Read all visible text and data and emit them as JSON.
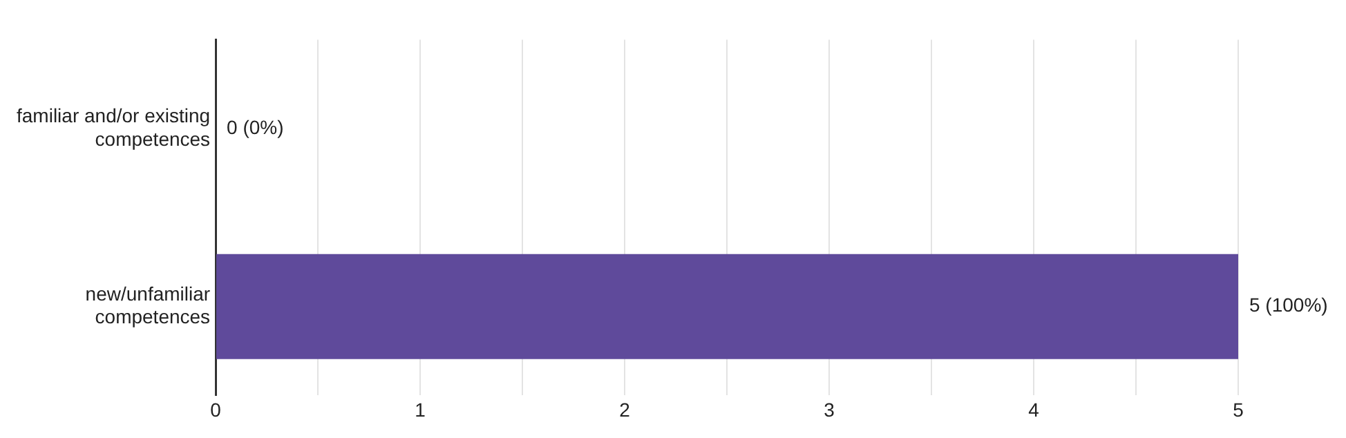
{
  "chart_data": {
    "type": "bar",
    "orientation": "horizontal",
    "categories": [
      "familiar and/or existing competences",
      "new/unfamiliar competences"
    ],
    "values": [
      0,
      5
    ],
    "color": "#5f4a9b",
    "value_labels": [
      "0 (0%)",
      "5 (100%)"
    ],
    "xlim": [
      0,
      5
    ],
    "xticks": [
      0,
      {
        "value": 0.5,
        "label": null
      },
      1,
      {
        "value": 1.5,
        "label": null
      },
      2,
      {
        "value": 2.5,
        "label": null
      },
      3,
      {
        "value": 3.5,
        "label": null
      },
      4,
      {
        "value": 4.5,
        "label": null
      },
      5
    ],
    "grid": "x",
    "legend": false
  }
}
